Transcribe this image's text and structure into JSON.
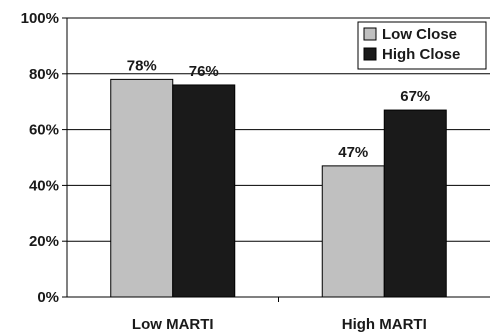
{
  "chart_data": {
    "type": "bar",
    "categories": [
      "Low MARTI",
      "High MARTI"
    ],
    "series": [
      {
        "name": "Low Close",
        "values": [
          78,
          47
        ],
        "labels": [
          "78%",
          "47%"
        ],
        "color": "#c0c0c0"
      },
      {
        "name": "High Close",
        "values": [
          76,
          67
        ],
        "labels": [
          "76%",
          "67%"
        ],
        "color": "#1a1a1a"
      }
    ],
    "yticks": [
      "0%",
      "20%",
      "40%",
      "60%",
      "80%",
      "100%"
    ],
    "ylim": [
      0,
      100
    ],
    "grid": true,
    "legend_position": "top-right",
    "title": "",
    "xlabel": "",
    "ylabel": ""
  }
}
